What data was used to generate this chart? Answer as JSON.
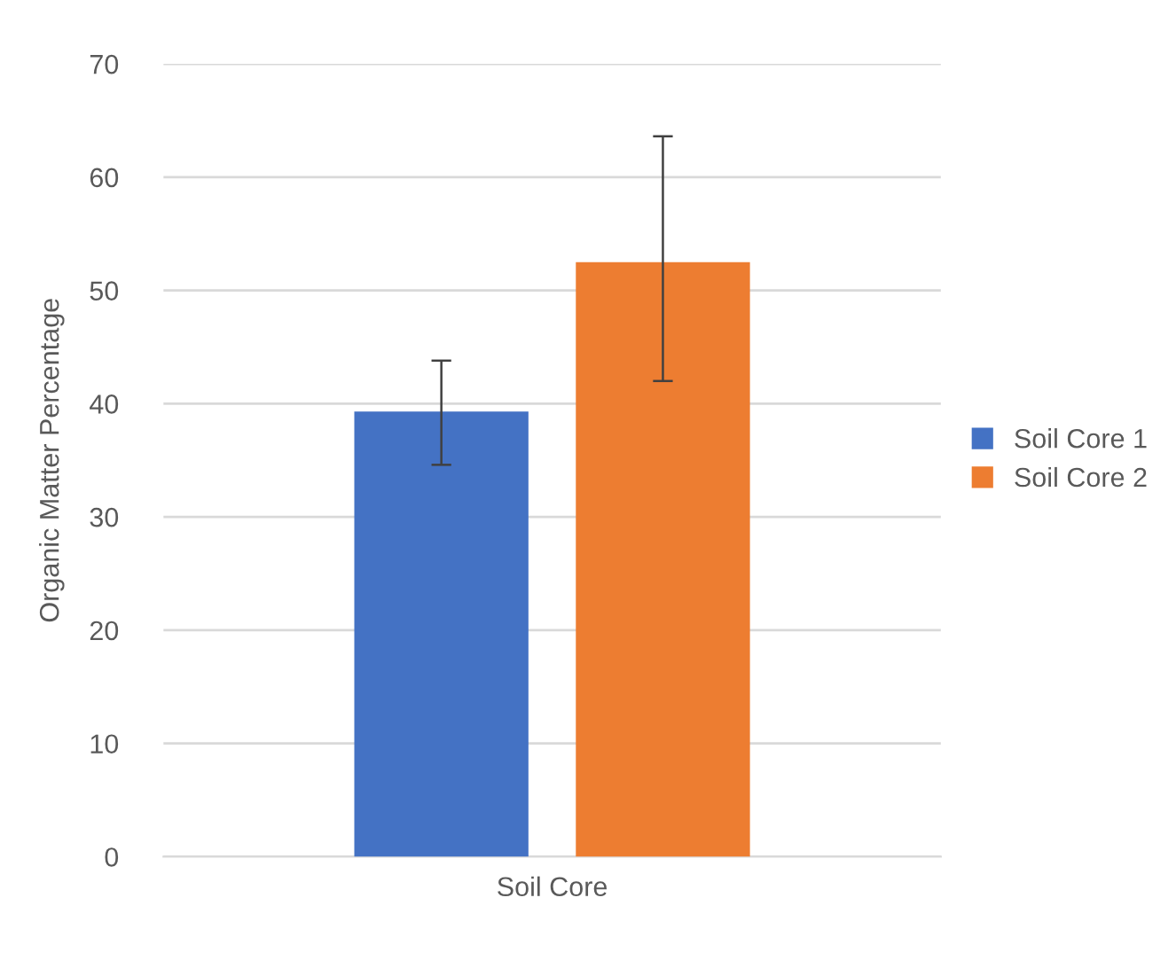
{
  "chart_data": {
    "type": "bar",
    "ylabel": "Organic Matter Percentage",
    "categories": [
      "Soil Core"
    ],
    "series": [
      {
        "name": "Soil Core 1",
        "color": "#4472c4",
        "values": [
          39.3
        ],
        "errors": [
          [
            34.6,
            43.8
          ]
        ]
      },
      {
        "name": "Soil Core 2",
        "color": "#ed7d31",
        "values": [
          52.5
        ],
        "errors": [
          [
            42.0,
            63.6
          ]
        ]
      }
    ],
    "ylim": [
      0,
      70
    ],
    "yticks": [
      0,
      10,
      20,
      30,
      40,
      50,
      60,
      70
    ],
    "grid": "y",
    "legend": "right"
  }
}
